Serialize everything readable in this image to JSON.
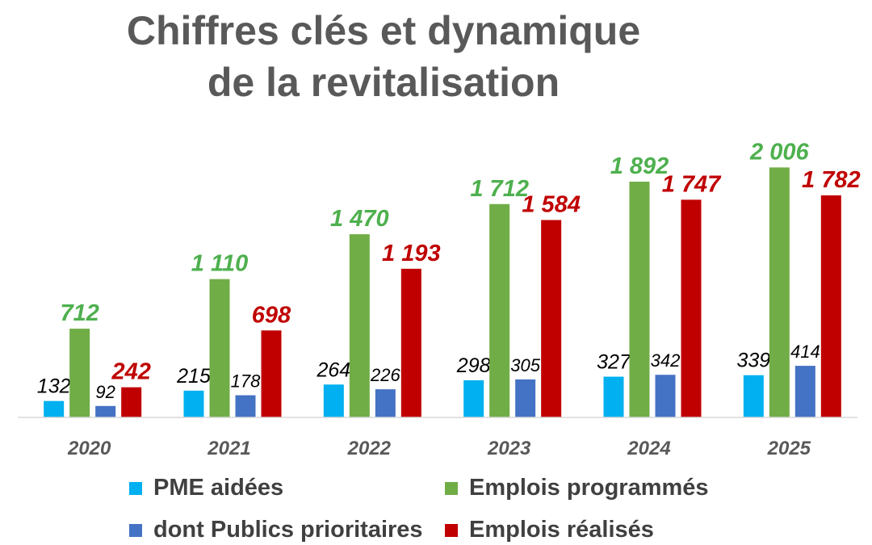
{
  "title_line1": "Chiffres clés et dynamique",
  "title_line2": "de la revitalisation",
  "chart_data": {
    "type": "bar",
    "title": "Chiffres clés et dynamique de la revitalisation",
    "categories": [
      "2020",
      "2021",
      "2022",
      "2023",
      "2024",
      "2025"
    ],
    "series": [
      {
        "name": "PME aidées",
        "color": "#00B0F0",
        "values": [
          132,
          215,
          264,
          298,
          327,
          339
        ],
        "labels": [
          "132",
          "215",
          "264",
          "298",
          "327",
          "339"
        ]
      },
      {
        "name": "Emplois programmés",
        "color": "#70AD47",
        "values": [
          712,
          1110,
          1470,
          1712,
          1892,
          2006
        ],
        "labels": [
          "712",
          "1 110",
          "1 470",
          "1 712",
          "1 892",
          "2 006"
        ]
      },
      {
        "name": "dont Publics prioritaires",
        "color": "#4472C4",
        "values": [
          92,
          178,
          226,
          305,
          342,
          414
        ],
        "labels": [
          "92",
          "178",
          "226",
          "305",
          "342",
          "414"
        ]
      },
      {
        "name": "Emplois réalisés",
        "color": "#C00000",
        "values": [
          242,
          698,
          1193,
          1584,
          1747,
          1782
        ],
        "labels": [
          "242",
          "698",
          "1 193",
          "1 584",
          "1 747",
          "1 782"
        ]
      }
    ],
    "ylim": [
      0,
      2300
    ],
    "grid": false,
    "legend_position": "bottom"
  }
}
